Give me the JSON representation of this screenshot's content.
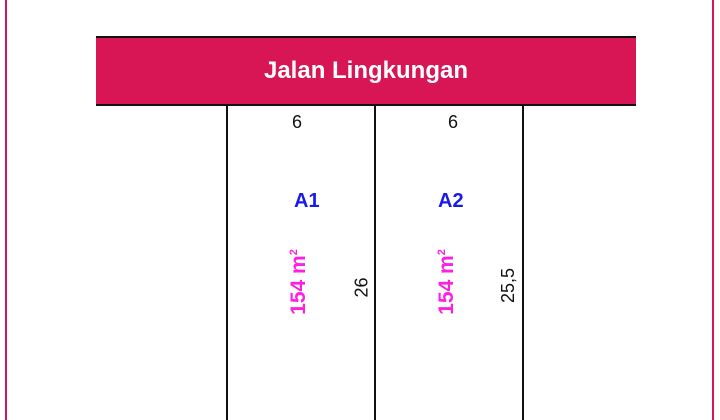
{
  "road": {
    "label": "Jalan Lingkungan",
    "color": "#d81555"
  },
  "plots": [
    {
      "id": "A1",
      "width": "6",
      "area": "154 m",
      "area_unit_exp": "2",
      "side_length": "26"
    },
    {
      "id": "A2",
      "width": "6",
      "area": "154 m",
      "area_unit_exp": "2",
      "side_length": "25,5"
    }
  ],
  "colors": {
    "plot_id": "#1a1ae8",
    "area": "#ff1fe0",
    "border": "#d81555"
  }
}
